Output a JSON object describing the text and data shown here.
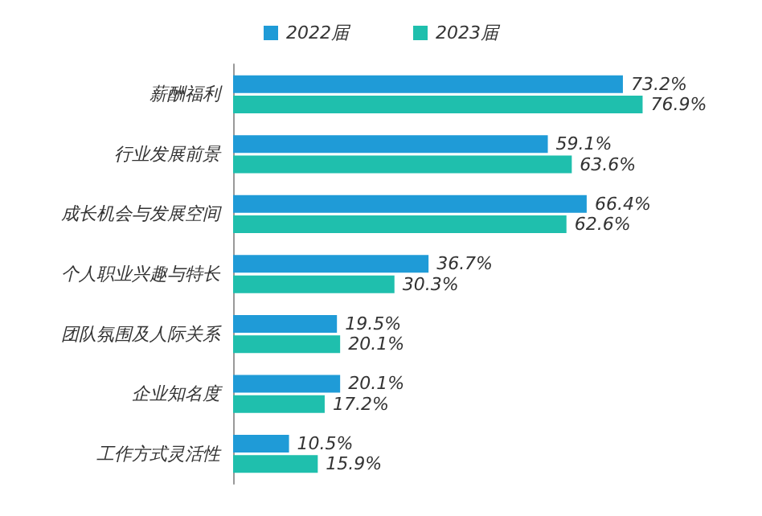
{
  "chart_data": {
    "type": "bar",
    "orientation": "horizontal",
    "categories": [
      "薪酬福利",
      "行业发展前景",
      "成长机会与发展空间",
      "个人职业兴趣与特长",
      "团队氛围及人际关系",
      "企业知名度",
      "工作方式灵活性"
    ],
    "series": [
      {
        "name": "2022届",
        "color": "#1f9bd7",
        "values": [
          73.2,
          59.1,
          66.4,
          36.7,
          19.5,
          20.1,
          10.5
        ],
        "value_labels": [
          "73.2%",
          "59.1%",
          "66.4%",
          "36.7%",
          "19.5%",
          "20.1%",
          "10.5%"
        ]
      },
      {
        "name": "2023届",
        "color": "#1fbfad",
        "values": [
          76.9,
          63.6,
          62.6,
          30.3,
          20.1,
          17.2,
          15.9
        ],
        "value_labels": [
          "76.9%",
          "63.6%",
          "62.6%",
          "30.3%",
          "20.1%",
          "17.2%",
          "15.9%"
        ]
      }
    ],
    "legend": "top",
    "tick_labels": "y"
  }
}
